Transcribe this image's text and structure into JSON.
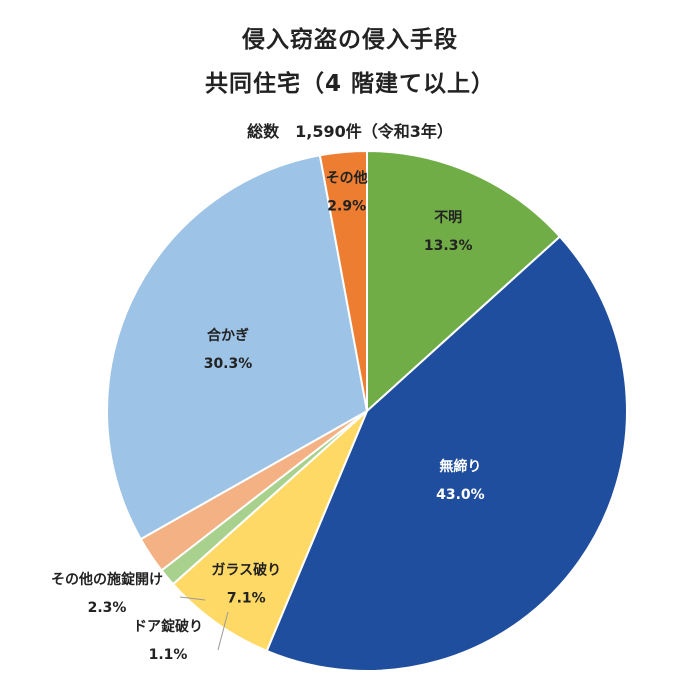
{
  "chart_data": {
    "type": "pie",
    "title": "侵入窃盗の侵入手段",
    "title_line2": "共同住宅（4 階建て以上）",
    "subtitle": "総数　1,590件（令和3年）",
    "start": "12 o'clock",
    "direction": "clockwise",
    "slices": [
      {
        "label": "不明",
        "value": 13.3,
        "display": "13.3%",
        "color": "#70AD47",
        "text_color": "#222222"
      },
      {
        "label": "無締り",
        "value": 43.0,
        "display": "43.0%",
        "color": "#1F4E9F",
        "text_color": "#ffffff"
      },
      {
        "label": "ガラス破り",
        "value": 7.1,
        "display": "7.1%",
        "color": "#FFD966",
        "text_color": "#222222"
      },
      {
        "label": "ドア錠破り",
        "value": 1.1,
        "display": "1.1%",
        "color": "#A9D18E",
        "text_color": "#222222"
      },
      {
        "label": "その他の施錠開け",
        "value": 2.3,
        "display": "2.3%",
        "color": "#F4B183",
        "text_color": "#222222"
      },
      {
        "label": "合かぎ",
        "value": 30.3,
        "display": "30.3%",
        "color": "#9DC3E6",
        "text_color": "#222222"
      },
      {
        "label": "その他",
        "value": 2.9,
        "display": "2.9%",
        "color": "#ED7D31",
        "text_color": "#222222"
      }
    ]
  }
}
